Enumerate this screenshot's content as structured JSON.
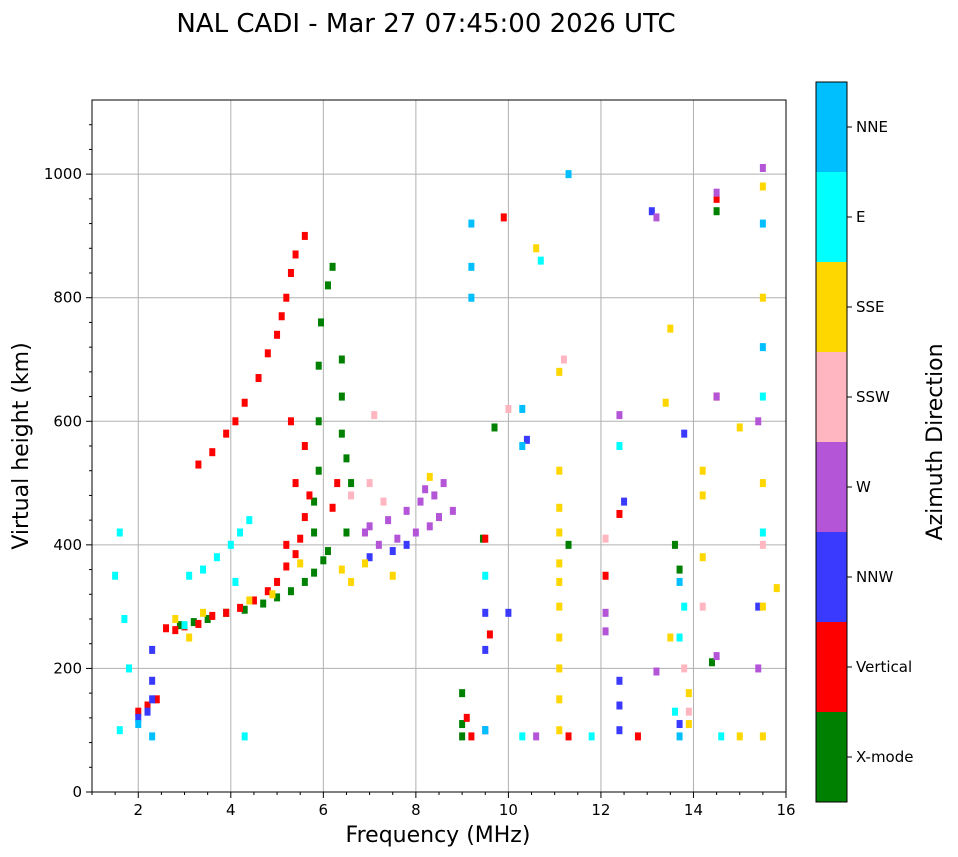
{
  "chart_data": {
    "type": "scatter",
    "title": "NAL CADI - Mar 27 07:45:00 2026 UTC",
    "xlabel": "Frequency (MHz)",
    "ylabel": "Virtual height (km)",
    "xlim": [
      1,
      16
    ],
    "ylim": [
      0,
      1120
    ],
    "xticks": [
      2,
      4,
      6,
      8,
      10,
      12,
      14,
      16
    ],
    "yticks": [
      0,
      200,
      400,
      600,
      800,
      1000
    ],
    "grid": true,
    "colorbar": {
      "title": "Azimuth Direction",
      "categories": [
        {
          "name": "X-mode",
          "color": "#008000"
        },
        {
          "name": "Vertical",
          "color": "#ff0000"
        },
        {
          "name": "NNW",
          "color": "#3a3aff"
        },
        {
          "name": "W",
          "color": "#b455d8"
        },
        {
          "name": "SSW",
          "color": "#ffb6c1"
        },
        {
          "name": "SSE",
          "color": "#ffd700"
        },
        {
          "name": "E",
          "color": "#00ffff"
        },
        {
          "name": "NNE",
          "color": "#00bfff"
        }
      ]
    },
    "series": [
      {
        "name": "X-mode",
        "points": [
          [
            2.9,
            270
          ],
          [
            3.2,
            275
          ],
          [
            3.5,
            280
          ],
          [
            3.9,
            290
          ],
          [
            4.3,
            295
          ],
          [
            4.7,
            305
          ],
          [
            5.0,
            315
          ],
          [
            5.3,
            325
          ],
          [
            5.6,
            340
          ],
          [
            5.8,
            355
          ],
          [
            6.0,
            375
          ],
          [
            6.1,
            390
          ],
          [
            5.8,
            420
          ],
          [
            5.8,
            470
          ],
          [
            5.9,
            520
          ],
          [
            5.9,
            600
          ],
          [
            5.9,
            690
          ],
          [
            5.95,
            760
          ],
          [
            6.1,
            820
          ],
          [
            6.2,
            850
          ],
          [
            6.4,
            700
          ],
          [
            6.4,
            640
          ],
          [
            6.4,
            580
          ],
          [
            6.5,
            540
          ],
          [
            6.6,
            500
          ],
          [
            6.5,
            420
          ],
          [
            9.0,
            110
          ],
          [
            9.0,
            160
          ],
          [
            9.0,
            90
          ],
          [
            9.45,
            410
          ],
          [
            9.7,
            590
          ],
          [
            11.3,
            400
          ],
          [
            13.6,
            400
          ],
          [
            13.7,
            360
          ],
          [
            14.4,
            210
          ],
          [
            14.5,
            940
          ]
        ]
      },
      {
        "name": "Vertical",
        "points": [
          [
            2.6,
            265
          ],
          [
            2.8,
            262
          ],
          [
            3.0,
            268
          ],
          [
            3.3,
            272
          ],
          [
            3.6,
            285
          ],
          [
            3.9,
            290
          ],
          [
            4.2,
            298
          ],
          [
            4.5,
            310
          ],
          [
            4.8,
            325
          ],
          [
            5.0,
            340
          ],
          [
            5.2,
            365
          ],
          [
            5.4,
            385
          ],
          [
            5.5,
            410
          ],
          [
            5.6,
            445
          ],
          [
            5.7,
            480
          ],
          [
            5.2,
            400
          ],
          [
            5.4,
            500
          ],
          [
            5.6,
            560
          ],
          [
            5.3,
            600
          ],
          [
            3.3,
            530
          ],
          [
            3.6,
            550
          ],
          [
            3.9,
            580
          ],
          [
            4.1,
            600
          ],
          [
            4.3,
            630
          ],
          [
            4.6,
            670
          ],
          [
            4.8,
            710
          ],
          [
            5.0,
            740
          ],
          [
            5.1,
            770
          ],
          [
            5.2,
            800
          ],
          [
            5.3,
            840
          ],
          [
            5.4,
            870
          ],
          [
            5.6,
            900
          ],
          [
            2.0,
            130
          ],
          [
            2.2,
            140
          ],
          [
            2.4,
            150
          ],
          [
            6.2,
            460
          ],
          [
            6.3,
            500
          ],
          [
            9.1,
            120
          ],
          [
            9.2,
            90
          ],
          [
            9.5,
            410
          ],
          [
            9.6,
            255
          ],
          [
            9.9,
            930
          ],
          [
            11.3,
            90
          ],
          [
            12.1,
            350
          ],
          [
            12.4,
            450
          ],
          [
            12.8,
            90
          ],
          [
            14.5,
            640
          ],
          [
            14.5,
            960
          ]
        ]
      },
      {
        "name": "NNW",
        "points": [
          [
            2.0,
            120
          ],
          [
            2.2,
            130
          ],
          [
            2.3,
            150
          ],
          [
            2.3,
            180
          ],
          [
            2.3,
            230
          ],
          [
            7.0,
            380
          ],
          [
            7.5,
            390
          ],
          [
            7.8,
            400
          ],
          [
            9.5,
            100
          ],
          [
            9.5,
            230
          ],
          [
            9.5,
            290
          ],
          [
            10.0,
            290
          ],
          [
            10.4,
            570
          ],
          [
            12.4,
            180
          ],
          [
            12.4,
            140
          ],
          [
            12.4,
            100
          ],
          [
            12.5,
            470
          ],
          [
            13.1,
            940
          ],
          [
            13.7,
            110
          ],
          [
            13.8,
            580
          ],
          [
            15.4,
            300
          ]
        ]
      },
      {
        "name": "W",
        "points": [
          [
            7.2,
            400
          ],
          [
            7.6,
            410
          ],
          [
            8.0,
            420
          ],
          [
            8.3,
            430
          ],
          [
            8.5,
            445
          ],
          [
            8.8,
            455
          ],
          [
            7.0,
            430
          ],
          [
            7.4,
            440
          ],
          [
            7.8,
            455
          ],
          [
            8.1,
            470
          ],
          [
            8.4,
            480
          ],
          [
            6.9,
            420
          ],
          [
            8.2,
            490
          ],
          [
            8.6,
            500
          ],
          [
            10.6,
            90
          ],
          [
            12.1,
            260
          ],
          [
            12.1,
            290
          ],
          [
            12.4,
            610
          ],
          [
            13.2,
            195
          ],
          [
            13.2,
            930
          ],
          [
            14.5,
            220
          ],
          [
            14.5,
            640
          ],
          [
            14.5,
            970
          ],
          [
            15.5,
            1010
          ],
          [
            15.4,
            600
          ],
          [
            15.4,
            200
          ]
        ]
      },
      {
        "name": "SSW",
        "points": [
          [
            6.6,
            480
          ],
          [
            7.0,
            500
          ],
          [
            7.3,
            470
          ],
          [
            7.1,
            610
          ],
          [
            10.0,
            620
          ],
          [
            11.2,
            700
          ],
          [
            12.1,
            410
          ],
          [
            13.8,
            200
          ],
          [
            13.9,
            130
          ],
          [
            14.2,
            300
          ],
          [
            15.5,
            400
          ]
        ]
      },
      {
        "name": "SSE",
        "points": [
          [
            2.8,
            280
          ],
          [
            3.1,
            250
          ],
          [
            3.4,
            290
          ],
          [
            4.4,
            310
          ],
          [
            4.9,
            320
          ],
          [
            5.5,
            370
          ],
          [
            6.4,
            360
          ],
          [
            6.6,
            340
          ],
          [
            6.9,
            370
          ],
          [
            7.5,
            350
          ],
          [
            8.3,
            510
          ],
          [
            11.1,
            100
          ],
          [
            11.1,
            150
          ],
          [
            11.1,
            200
          ],
          [
            11.1,
            250
          ],
          [
            11.1,
            300
          ],
          [
            11.1,
            340
          ],
          [
            11.1,
            370
          ],
          [
            11.1,
            420
          ],
          [
            11.1,
            460
          ],
          [
            11.1,
            520
          ],
          [
            11.1,
            680
          ],
          [
            10.6,
            880
          ],
          [
            13.4,
            630
          ],
          [
            13.5,
            250
          ],
          [
            13.5,
            750
          ],
          [
            13.9,
            160
          ],
          [
            13.9,
            110
          ],
          [
            14.2,
            480
          ],
          [
            14.2,
            520
          ],
          [
            14.2,
            380
          ],
          [
            15.0,
            590
          ],
          [
            15.0,
            90
          ],
          [
            15.5,
            90
          ],
          [
            15.5,
            300
          ],
          [
            15.5,
            500
          ],
          [
            15.5,
            800
          ],
          [
            15.5,
            980
          ],
          [
            15.8,
            330
          ]
        ]
      },
      {
        "name": "E",
        "points": [
          [
            1.6,
            420
          ],
          [
            1.5,
            350
          ],
          [
            1.7,
            280
          ],
          [
            1.8,
            200
          ],
          [
            1.6,
            100
          ],
          [
            3.1,
            350
          ],
          [
            3.4,
            360
          ],
          [
            3.7,
            380
          ],
          [
            4.0,
            400
          ],
          [
            4.2,
            420
          ],
          [
            4.4,
            440
          ],
          [
            4.1,
            340
          ],
          [
            3.0,
            270
          ],
          [
            4.3,
            90
          ],
          [
            9.5,
            350
          ],
          [
            10.3,
            90
          ],
          [
            10.7,
            860
          ],
          [
            11.8,
            90
          ],
          [
            12.4,
            560
          ],
          [
            13.6,
            130
          ],
          [
            13.7,
            250
          ],
          [
            13.8,
            300
          ],
          [
            14.6,
            90
          ],
          [
            15.5,
            420
          ],
          [
            15.5,
            640
          ]
        ]
      },
      {
        "name": "NNE",
        "points": [
          [
            2.0,
            110
          ],
          [
            2.3,
            90
          ],
          [
            9.2,
            800
          ],
          [
            9.2,
            920
          ],
          [
            9.2,
            850
          ],
          [
            9.5,
            100
          ],
          [
            10.3,
            620
          ],
          [
            10.3,
            560
          ],
          [
            11.3,
            1000
          ],
          [
            13.7,
            90
          ],
          [
            13.7,
            340
          ],
          [
            15.5,
            720
          ],
          [
            15.5,
            920
          ]
        ]
      }
    ]
  }
}
